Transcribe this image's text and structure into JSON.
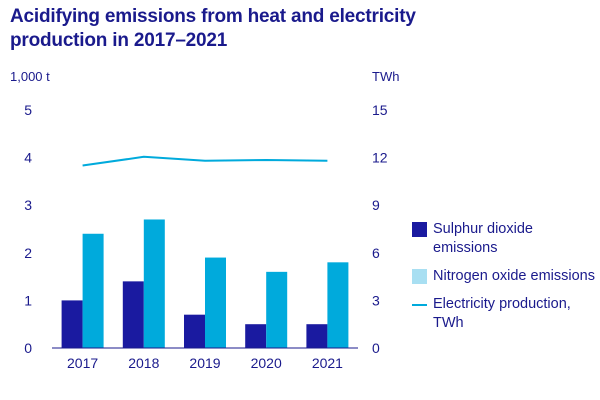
{
  "title": "Acidifying emissions from heat and electricity production in 2017–2021",
  "colors": {
    "text": "#1a1a8c",
    "sulphur": "#1a1aa0",
    "nitrogen": "#00aadc",
    "nitrogen_legend": "#a8dff2",
    "line": "#00aadc",
    "axis": "#1a1a8c"
  },
  "chart_data": {
    "type": "bar",
    "categories": [
      "2017",
      "2018",
      "2019",
      "2020",
      "2021"
    ],
    "y_left": {
      "unit": "1,000 t",
      "lim": [
        0,
        5
      ],
      "ticks": [
        "0",
        "1",
        "2",
        "3",
        "4",
        "5"
      ]
    },
    "y_right": {
      "unit": "TWh",
      "lim": [
        0,
        15
      ],
      "ticks": [
        "0",
        "3",
        "6",
        "9",
        "12",
        "15"
      ]
    },
    "series": [
      {
        "name": "Sulphur dioxide emissions",
        "type": "bar",
        "axis": "left",
        "values": [
          1.0,
          1.4,
          0.7,
          0.5,
          0.5
        ]
      },
      {
        "name": "Nitrogen oxide emissions",
        "type": "bar",
        "axis": "left",
        "values": [
          2.4,
          2.7,
          1.9,
          1.6,
          1.8
        ]
      },
      {
        "name": "Electricity production, TWh",
        "type": "line",
        "axis": "right",
        "values": [
          11.5,
          12.05,
          11.8,
          11.85,
          11.8
        ]
      }
    ],
    "grid": false,
    "legend_position": "right"
  },
  "legend": [
    {
      "label": "Sulphur dioxide emissions",
      "swatch": "sulphur"
    },
    {
      "label": "Nitrogen oxide emissions",
      "swatch": "nitrogen_legend"
    },
    {
      "label": "Electricity production, TWh",
      "swatch": "line"
    }
  ]
}
